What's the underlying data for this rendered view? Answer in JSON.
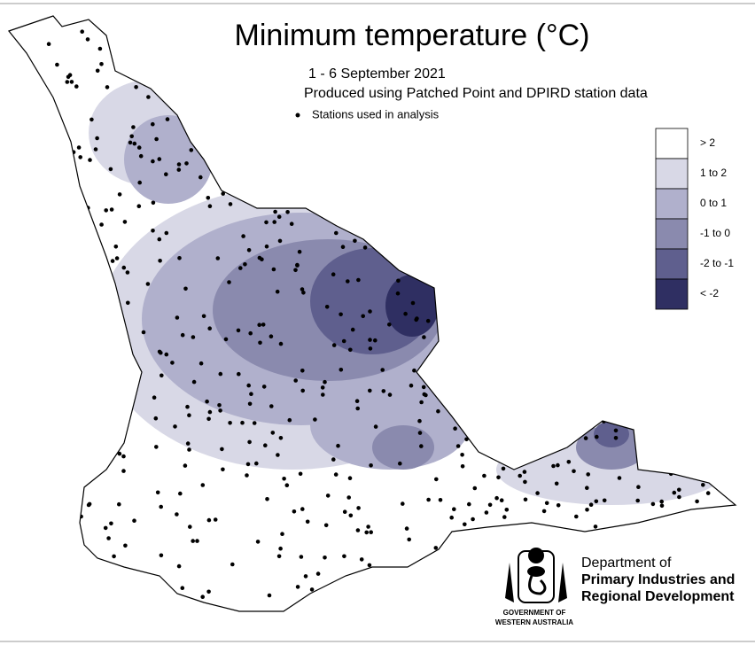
{
  "title": "Minimum temperature (°C)",
  "subtitle": "1 -  6 September 2021",
  "source": "Produced using Patched Point and DPIRD station data",
  "stations_note": "Stations used in analysis",
  "legend": [
    {
      "label": "> 2",
      "color": "#ffffff"
    },
    {
      "label": "1 to 2",
      "color": "#d8d8e6"
    },
    {
      "label": "0 to 1",
      "color": "#b0b0cc"
    },
    {
      "label": "-1 to 0",
      "color": "#8a8aae"
    },
    {
      "label": "-2 to -1",
      "color": "#5f5f8e"
    },
    {
      "label": "< -2",
      "color": "#2f2f62"
    }
  ],
  "logo": {
    "department": "Department of",
    "name_line1": "Primary Industries and",
    "name_line2": "Regional Development",
    "gov_line1": "GOVERNMENT OF",
    "gov_line2": "WESTERN AUSTRALIA"
  }
}
